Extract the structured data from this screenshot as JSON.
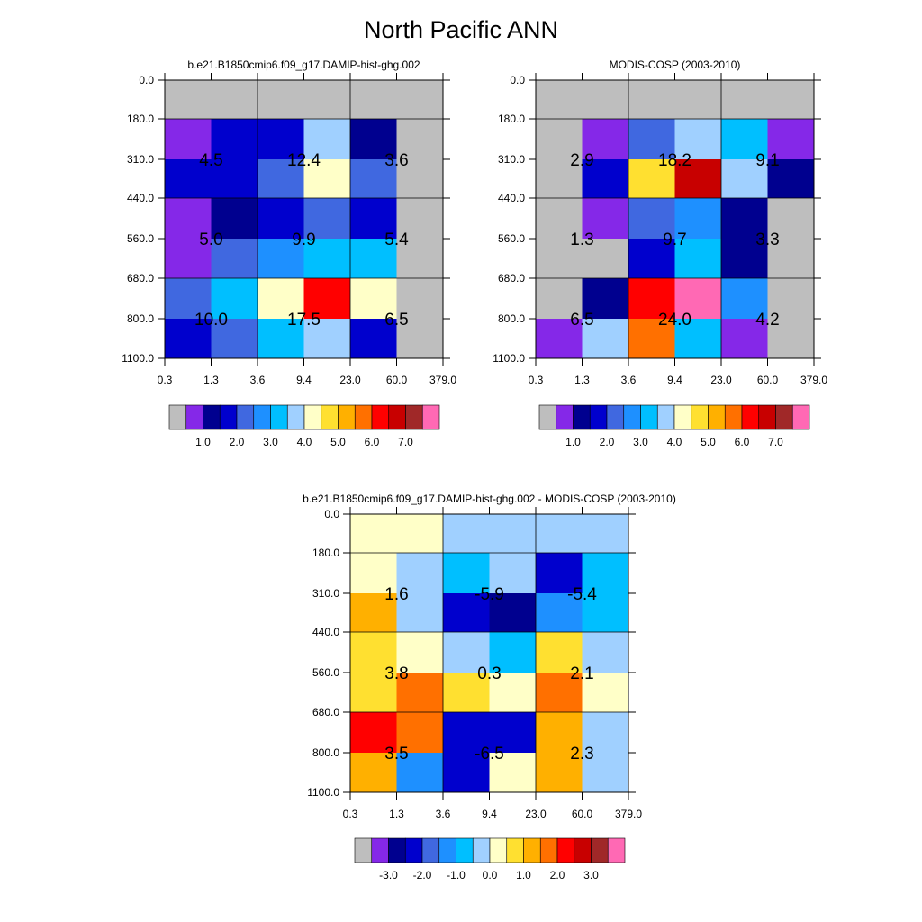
{
  "figure": {
    "title": "North Pacific ANN"
  },
  "colors": {
    "grid": "#000000",
    "gray": "#bebebe",
    "abs_palette": [
      "#bebebe",
      "#8528e8",
      "#00008f",
      "#0000cd",
      "#4068e0",
      "#1e90ff",
      "#00bfff",
      "#a0d0ff",
      "#ffffc8",
      "#ffe030",
      "#ffb000",
      "#ff7000",
      "#ff0000",
      "#c80000",
      "#a02828",
      "#ff69b4"
    ],
    "diff_palette": [
      "#bebebe",
      "#8528e8",
      "#00008f",
      "#0000cd",
      "#4068e0",
      "#1e90ff",
      "#00bfff",
      "#a0d0ff",
      "#ffffc8",
      "#ffe030",
      "#ffb000",
      "#ff7000",
      "#ff0000",
      "#c80000",
      "#a02828",
      "#ff69b4"
    ]
  },
  "chart_data": [
    {
      "type": "heatmap",
      "title": "b.e21.B1850cmip6.f09_g17.DAMIP-hist-ghg.002",
      "x_ticks": [
        "0.3",
        "1.3",
        "3.6",
        "9.4",
        "23.0",
        "60.0",
        "379.0"
      ],
      "y_ticks": [
        "0.0",
        "180.0",
        "310.0",
        "440.0",
        "560.0",
        "680.0",
        "800.0",
        "1100.0"
      ],
      "cells": [
        [
          0,
          0,
          0,
          0,
          0,
          0
        ],
        [
          1,
          3,
          3,
          7,
          2,
          0
        ],
        [
          3,
          3,
          4,
          8,
          4,
          0
        ],
        [
          1,
          2,
          3,
          4,
          3,
          0
        ],
        [
          1,
          4,
          5,
          6,
          6,
          0
        ],
        [
          4,
          6,
          8,
          12,
          8,
          0
        ],
        [
          3,
          4,
          6,
          7,
          3,
          0
        ]
      ],
      "block_labels": [
        {
          "row": 0,
          "col": 0,
          "text": "4.5"
        },
        {
          "row": 0,
          "col": 1,
          "text": "12.4"
        },
        {
          "row": 0,
          "col": 2,
          "text": "3.6"
        },
        {
          "row": 1,
          "col": 0,
          "text": "5.0"
        },
        {
          "row": 1,
          "col": 1,
          "text": "9.9"
        },
        {
          "row": 1,
          "col": 2,
          "text": "5.4"
        },
        {
          "row": 2,
          "col": 0,
          "text": "10.0"
        },
        {
          "row": 2,
          "col": 1,
          "text": "17.5"
        },
        {
          "row": 2,
          "col": 2,
          "text": "6.5"
        }
      ],
      "colorbar": {
        "labels": [
          "1.0",
          "2.0",
          "3.0",
          "4.0",
          "5.0",
          "6.0",
          "7.0"
        ]
      }
    },
    {
      "type": "heatmap",
      "title": "MODIS-COSP (2003-2010)",
      "x_ticks": [
        "0.3",
        "1.3",
        "3.6",
        "9.4",
        "23.0",
        "60.0",
        "379.0"
      ],
      "y_ticks": [
        "0.0",
        "180.0",
        "310.0",
        "440.0",
        "560.0",
        "680.0",
        "800.0",
        "1100.0"
      ],
      "cells": [
        [
          0,
          0,
          0,
          0,
          0,
          0
        ],
        [
          0,
          1,
          4,
          7,
          6,
          1
        ],
        [
          0,
          3,
          9,
          13,
          7,
          2
        ],
        [
          0,
          1,
          4,
          5,
          2,
          0
        ],
        [
          0,
          0,
          3,
          6,
          2,
          0
        ],
        [
          0,
          2,
          12,
          15,
          5,
          0
        ],
        [
          1,
          7,
          11,
          6,
          1,
          0
        ]
      ],
      "block_labels": [
        {
          "row": 0,
          "col": 0,
          "text": "2.9"
        },
        {
          "row": 0,
          "col": 1,
          "text": "18.2"
        },
        {
          "row": 0,
          "col": 2,
          "text": "9.1"
        },
        {
          "row": 1,
          "col": 0,
          "text": "1.3"
        },
        {
          "row": 1,
          "col": 1,
          "text": "9.7"
        },
        {
          "row": 1,
          "col": 2,
          "text": "3.3"
        },
        {
          "row": 2,
          "col": 0,
          "text": "6.5"
        },
        {
          "row": 2,
          "col": 1,
          "text": "24.0"
        },
        {
          "row": 2,
          "col": 2,
          "text": "4.2"
        }
      ],
      "colorbar": {
        "labels": [
          "1.0",
          "2.0",
          "3.0",
          "4.0",
          "5.0",
          "6.0",
          "7.0"
        ]
      }
    },
    {
      "type": "heatmap",
      "title": "b.e21.B1850cmip6.f09_g17.DAMIP-hist-ghg.002 - MODIS-COSP (2003-2010)",
      "x_ticks": [
        "0.3",
        "1.3",
        "3.6",
        "9.4",
        "23.0",
        "60.0",
        "379.0"
      ],
      "y_ticks": [
        "0.0",
        "180.0",
        "310.0",
        "440.0",
        "560.0",
        "680.0",
        "800.0",
        "1100.0"
      ],
      "cells": [
        [
          8,
          8,
          7,
          7,
          7,
          7
        ],
        [
          8,
          7,
          6,
          7,
          3,
          6
        ],
        [
          10,
          7,
          3,
          2,
          5,
          6
        ],
        [
          9,
          8,
          7,
          6,
          9,
          7
        ],
        [
          9,
          11,
          9,
          8,
          11,
          8
        ],
        [
          12,
          11,
          3,
          3,
          10,
          7
        ],
        [
          10,
          5,
          3,
          8,
          10,
          7
        ]
      ],
      "block_labels": [
        {
          "row": 0,
          "col": 0,
          "text": "1.6"
        },
        {
          "row": 0,
          "col": 1,
          "text": "-5.9"
        },
        {
          "row": 0,
          "col": 2,
          "text": "-5.4"
        },
        {
          "row": 1,
          "col": 0,
          "text": "3.8"
        },
        {
          "row": 1,
          "col": 1,
          "text": "0.3"
        },
        {
          "row": 1,
          "col": 2,
          "text": "2.1"
        },
        {
          "row": 2,
          "col": 0,
          "text": "3.5"
        },
        {
          "row": 2,
          "col": 1,
          "text": "-6.5"
        },
        {
          "row": 2,
          "col": 2,
          "text": "2.3"
        }
      ],
      "colorbar": {
        "labels": [
          "-3.0",
          "-2.0",
          "-1.0",
          "0.0",
          "1.0",
          "2.0",
          "3.0"
        ]
      }
    }
  ]
}
